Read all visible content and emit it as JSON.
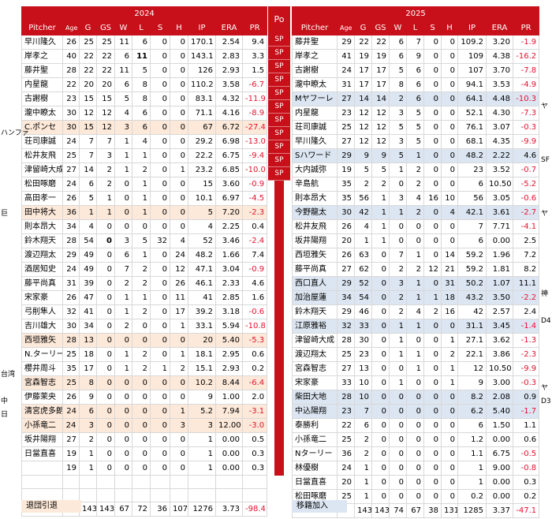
{
  "headers": {
    "year_left": "2024",
    "year_right": "2025",
    "position": "Po",
    "columns": [
      "Pitcher",
      "Age",
      "G",
      "GS",
      "W",
      "L",
      "S",
      "H",
      "IP",
      "ERA",
      "PR"
    ]
  },
  "left_rows": [
    {
      "name": "早川隆久",
      "age": "26",
      "g": "25",
      "gs": "25",
      "w": "11",
      "l": "6",
      "s": "0",
      "h": "0",
      "ip": "170.1",
      "era": "2.54",
      "pr": "9.4",
      "hl": "",
      "bold": ""
    },
    {
      "name": "岸孝之",
      "age": "40",
      "g": "22",
      "gs": "22",
      "w": "6",
      "l": "11",
      "s": "0",
      "h": "0",
      "ip": "143.1",
      "era": "2.83",
      "pr": "3.3",
      "hl": "",
      "bold": "l"
    },
    {
      "name": "藤井聖",
      "age": "28",
      "g": "22",
      "gs": "22",
      "w": "11",
      "l": "5",
      "s": "0",
      "h": "0",
      "ip": "126",
      "era": "2.93",
      "pr": "1.5",
      "hl": "",
      "bold": ""
    },
    {
      "name": "内星龍",
      "age": "22",
      "g": "20",
      "gs": "20",
      "w": "6",
      "l": "8",
      "s": "0",
      "h": "0",
      "ip": "110.2",
      "era": "3.58",
      "pr": "-6.7",
      "hl": "",
      "bold": ""
    },
    {
      "name": "古謝樹",
      "age": "23",
      "g": "15",
      "gs": "15",
      "w": "5",
      "l": "8",
      "s": "0",
      "h": "0",
      "ip": "83.1",
      "era": "4.32",
      "pr": "-11.9",
      "hl": "",
      "bold": ""
    },
    {
      "name": "瀧中瞭太",
      "age": "30",
      "g": "12",
      "gs": "12",
      "w": "4",
      "l": "6",
      "s": "0",
      "h": "0",
      "ip": "71.1",
      "era": "4.16",
      "pr": "-8.9",
      "hl": "",
      "bold": ""
    },
    {
      "name": "C.ポンセ",
      "age": "30",
      "g": "15",
      "gs": "12",
      "w": "3",
      "l": "6",
      "s": "0",
      "h": "0",
      "ip": "67",
      "era": "6.72",
      "pr": "-27.4",
      "hl": "orange",
      "bold": ""
    },
    {
      "name": "荘司康誠",
      "age": "24",
      "g": "7",
      "gs": "7",
      "w": "1",
      "l": "4",
      "s": "0",
      "h": "0",
      "ip": "29.2",
      "era": "6.98",
      "pr": "-13.0",
      "hl": "",
      "bold": ""
    },
    {
      "name": "松井友飛",
      "age": "25",
      "g": "7",
      "gs": "3",
      "w": "1",
      "l": "1",
      "s": "0",
      "h": "0",
      "ip": "22.2",
      "era": "6.75",
      "pr": "-9.4",
      "hl": "",
      "bold": ""
    },
    {
      "name": "津留崎大成",
      "age": "27",
      "g": "14",
      "gs": "2",
      "w": "1",
      "l": "2",
      "s": "0",
      "h": "1",
      "ip": "23.2",
      "era": "6.85",
      "pr": "-10.0",
      "hl": "",
      "bold": ""
    },
    {
      "name": "松田啄磨",
      "age": "24",
      "g": "6",
      "gs": "2",
      "w": "0",
      "l": "1",
      "s": "0",
      "h": "0",
      "ip": "15",
      "era": "3.60",
      "pr": "-0.9",
      "hl": "",
      "bold": ""
    },
    {
      "name": "高田孝一",
      "age": "26",
      "g": "5",
      "gs": "1",
      "w": "0",
      "l": "1",
      "s": "0",
      "h": "0",
      "ip": "10.1",
      "era": "6.97",
      "pr": "-4.5",
      "hl": "",
      "bold": ""
    },
    {
      "name": "田中将大",
      "age": "36",
      "g": "1",
      "gs": "1",
      "w": "0",
      "l": "1",
      "s": "0",
      "h": "0",
      "ip": "5",
      "era": "7.20",
      "pr": "-2.3",
      "hl": "orange",
      "bold": ""
    },
    {
      "name": "則本昂大",
      "age": "34",
      "g": "4",
      "gs": "0",
      "w": "0",
      "l": "0",
      "s": "0",
      "h": "0",
      "ip": "4",
      "era": "2.25",
      "pr": "0.4",
      "hl": "",
      "bold": ""
    },
    {
      "name": "鈴木翔天",
      "age": "28",
      "g": "54",
      "gs": "0",
      "w": "3",
      "l": "5",
      "s": "32",
      "h": "4",
      "ip": "52",
      "era": "3.46",
      "pr": "-2.4",
      "hl": "",
      "bold": "gs"
    },
    {
      "name": "渡辺翔太",
      "age": "29",
      "g": "49",
      "gs": "0",
      "w": "6",
      "l": "1",
      "s": "0",
      "h": "24",
      "ip": "48.2",
      "era": "1.66",
      "pr": "7.4",
      "hl": "",
      "bold": ""
    },
    {
      "name": "酒居知史",
      "age": "24",
      "g": "49",
      "gs": "0",
      "w": "7",
      "l": "2",
      "s": "0",
      "h": "12",
      "ip": "47.1",
      "era": "3.04",
      "pr": "-0.9",
      "hl": "",
      "bold": ""
    },
    {
      "name": "藤平尚真",
      "age": "31",
      "g": "39",
      "gs": "0",
      "w": "2",
      "l": "2",
      "s": "0",
      "h": "26",
      "ip": "46.1",
      "era": "2.33",
      "pr": "4.6",
      "hl": "",
      "bold": ""
    },
    {
      "name": "宋家豪",
      "age": "26",
      "g": "47",
      "gs": "0",
      "w": "1",
      "l": "1",
      "s": "0",
      "h": "11",
      "ip": "41",
      "era": "2.85",
      "pr": "1.6",
      "hl": "",
      "bold": ""
    },
    {
      "name": "弓削隼人",
      "age": "32",
      "g": "41",
      "gs": "0",
      "w": "1",
      "l": "2",
      "s": "0",
      "h": "17",
      "ip": "39.2",
      "era": "3.18",
      "pr": "-0.6",
      "hl": "",
      "bold": ""
    },
    {
      "name": "吉川雄大",
      "age": "30",
      "g": "34",
      "gs": "0",
      "w": "2",
      "l": "0",
      "s": "0",
      "h": "1",
      "ip": "33.1",
      "era": "5.94",
      "pr": "-10.8",
      "hl": "",
      "bold": ""
    },
    {
      "name": "西垣雅矢",
      "age": "28",
      "g": "13",
      "gs": "0",
      "w": "0",
      "l": "0",
      "s": "0",
      "h": "0",
      "ip": "20",
      "era": "5.40",
      "pr": "-5.3",
      "hl": "orange",
      "bold": ""
    },
    {
      "name": "N.ターリー",
      "age": "25",
      "g": "18",
      "gs": "0",
      "w": "1",
      "l": "2",
      "s": "0",
      "h": "1",
      "ip": "18.1",
      "era": "2.95",
      "pr": "0.6",
      "hl": "",
      "bold": ""
    },
    {
      "name": "櫻井周斗",
      "age": "35",
      "g": "17",
      "gs": "0",
      "w": "1",
      "l": "2",
      "s": "1",
      "h": "2",
      "ip": "15.1",
      "era": "2.93",
      "pr": "0.2",
      "hl": "",
      "bold": ""
    },
    {
      "name": "宮森智志",
      "age": "25",
      "g": "8",
      "gs": "0",
      "w": "0",
      "l": "0",
      "s": "0",
      "h": "0",
      "ip": "10.2",
      "era": "8.44",
      "pr": "-6.4",
      "hl": "orange",
      "bold": ""
    },
    {
      "name": "伊藤茉央",
      "age": "26",
      "g": "9",
      "gs": "0",
      "w": "0",
      "l": "0",
      "s": "0",
      "h": "0",
      "ip": "9",
      "era": "1.00",
      "pr": "2.0",
      "hl": "",
      "bold": ""
    },
    {
      "name": "清宮虎多朗",
      "age": "24",
      "g": "6",
      "gs": "0",
      "w": "0",
      "l": "0",
      "s": "0",
      "h": "1",
      "ip": "5.2",
      "era": "7.94",
      "pr": "-3.1",
      "hl": "orange",
      "bold": ""
    },
    {
      "name": "小孫竜二",
      "age": "24",
      "g": "3",
      "gs": "0",
      "w": "0",
      "l": "0",
      "s": "0",
      "h": "3",
      "ip": "12.00",
      "era": "",
      "pr": "-3.0",
      "hl": "orange",
      "bold": "",
      "ip_era_merged": "3"
    },
    {
      "name": "坂井陽翔",
      "age": "27",
      "g": "2",
      "gs": "0",
      "w": "0",
      "l": "0",
      "s": "0",
      "h": "0",
      "ip": "1",
      "era": "0.00",
      "pr": "0.5",
      "hl": "",
      "bold": ""
    },
    {
      "name": "日當直喜",
      "age": "19",
      "g": "1",
      "gs": "0",
      "w": "0",
      "l": "0",
      "s": "0",
      "h": "0",
      "ip": "1",
      "era": "0.00",
      "pr": "0.3",
      "hl": "",
      "bold": ""
    },
    {
      "name": "",
      "age": "19",
      "g": "1",
      "gs": "0",
      "w": "0",
      "l": "0",
      "s": "0",
      "h": "0",
      "ip": "1",
      "era": "0.00",
      "pr": "0.3",
      "hl": "",
      "bold": ""
    },
    {
      "name": "",
      "age": "",
      "g": "",
      "gs": "",
      "w": "",
      "l": "",
      "s": "",
      "h": "",
      "ip": "",
      "era": "",
      "pr": "",
      "hl": "",
      "bold": ""
    },
    {
      "name": "",
      "age": "",
      "g": "",
      "gs": "",
      "w": "",
      "l": "",
      "s": "",
      "h": "",
      "ip": "",
      "era": "",
      "pr": "",
      "hl": "",
      "bold": ""
    },
    {
      "name": "",
      "age": "",
      "g": "",
      "gs": "",
      "w": "",
      "l": "",
      "s": "",
      "h": "",
      "ip": "",
      "era": "",
      "pr": "",
      "hl": "",
      "bold": ""
    }
  ],
  "left_total": {
    "g": "143",
    "gs": "143",
    "w": "67",
    "l": "72",
    "s": "36",
    "h": "107",
    "ip": "1276",
    "era": "3.73",
    "pr": "-98.4"
  },
  "right_rows": [
    {
      "name": "藤井聖",
      "age": "29",
      "g": "22",
      "gs": "22",
      "w": "6",
      "l": "7",
      "s": "0",
      "h": "0",
      "ip": "109.2",
      "era": "3.20",
      "pr": "-1.9",
      "hl": ""
    },
    {
      "name": "岸孝之",
      "age": "41",
      "g": "19",
      "gs": "19",
      "w": "6",
      "l": "9",
      "s": "0",
      "h": "0",
      "ip": "109",
      "era": "4.38",
      "pr": "-16.2",
      "hl": ""
    },
    {
      "name": "古謝樹",
      "age": "24",
      "g": "17",
      "gs": "17",
      "w": "5",
      "l": "6",
      "s": "0",
      "h": "0",
      "ip": "107",
      "era": "3.70",
      "pr": "-7.8",
      "hl": ""
    },
    {
      "name": "瀧中瞭太",
      "age": "31",
      "g": "17",
      "gs": "17",
      "w": "8",
      "l": "6",
      "s": "0",
      "h": "0",
      "ip": "94.1",
      "era": "3.53",
      "pr": "-4.9",
      "hl": ""
    },
    {
      "name": "Mヤフーレ",
      "age": "27",
      "g": "14",
      "gs": "14",
      "w": "2",
      "l": "6",
      "s": "0",
      "h": "0",
      "ip": "64.1",
      "era": "4.48",
      "pr": "-10.3",
      "hl": "blue"
    },
    {
      "name": "内星龍",
      "age": "23",
      "g": "12",
      "gs": "12",
      "w": "3",
      "l": "5",
      "s": "0",
      "h": "0",
      "ip": "52.1",
      "era": "4.30",
      "pr": "-7.3",
      "hl": ""
    },
    {
      "name": "荘司康誠",
      "age": "25",
      "g": "12",
      "gs": "12",
      "w": "5",
      "l": "5",
      "s": "0",
      "h": "0",
      "ip": "76.1",
      "era": "3.07",
      "pr": "-0.3",
      "hl": ""
    },
    {
      "name": "早川隆久",
      "age": "27",
      "g": "12",
      "gs": "12",
      "w": "3",
      "l": "5",
      "s": "0",
      "h": "0",
      "ip": "68.1",
      "era": "4.35",
      "pr": "-9.9",
      "hl": ""
    },
    {
      "name": "Sハワード",
      "age": "29",
      "g": "9",
      "gs": "9",
      "w": "5",
      "l": "1",
      "s": "0",
      "h": "0",
      "ip": "48.2",
      "era": "2.22",
      "pr": "4.6",
      "hl": "blue"
    },
    {
      "name": "大内誠弥",
      "age": "19",
      "g": "5",
      "gs": "5",
      "w": "1",
      "l": "2",
      "s": "0",
      "h": "0",
      "ip": "23",
      "era": "3.52",
      "pr": "-0.7",
      "hl": ""
    },
    {
      "name": "辛島航",
      "age": "35",
      "g": "2",
      "gs": "2",
      "w": "0",
      "l": "2",
      "s": "0",
      "h": "0",
      "ip": "6",
      "era": "10.50",
      "pr": "-5.2",
      "hl": ""
    },
    {
      "name": "則本昂大",
      "age": "35",
      "g": "56",
      "gs": "1",
      "w": "3",
      "l": "4",
      "s": "16",
      "h": "10",
      "ip": "56",
      "era": "3.05",
      "pr": "-0.6",
      "hl": ""
    },
    {
      "name": "今野龍太",
      "age": "30",
      "g": "42",
      "gs": "1",
      "w": "1",
      "l": "2",
      "s": "0",
      "h": "4",
      "ip": "42.1",
      "era": "3.61",
      "pr": "-2.7",
      "hl": "blue"
    },
    {
      "name": "松井友飛",
      "age": "26",
      "g": "4",
      "gs": "1",
      "w": "0",
      "l": "0",
      "s": "0",
      "h": "0",
      "ip": "7",
      "era": "7.71",
      "pr": "-4.1",
      "hl": ""
    },
    {
      "name": "坂井陽翔",
      "age": "20",
      "g": "1",
      "gs": "1",
      "w": "0",
      "l": "0",
      "s": "0",
      "h": "0",
      "ip": "6",
      "era": "0.00",
      "pr": "2.5",
      "hl": ""
    },
    {
      "name": "西垣雅矢",
      "age": "26",
      "g": "63",
      "gs": "0",
      "w": "7",
      "l": "1",
      "s": "0",
      "h": "14",
      "ip": "59.2",
      "era": "1.96",
      "pr": "7.2",
      "hl": ""
    },
    {
      "name": "藤平尚真",
      "age": "27",
      "g": "62",
      "gs": "0",
      "w": "2",
      "l": "2",
      "s": "12",
      "h": "21",
      "ip": "59.2",
      "era": "1.81",
      "pr": "8.2",
      "hl": ""
    },
    {
      "name": "西口直人",
      "age": "29",
      "g": "52",
      "gs": "0",
      "w": "3",
      "l": "1",
      "s": "0",
      "h": "31",
      "ip": "50.2",
      "era": "1.07",
      "pr": "11.1",
      "hl": "blue"
    },
    {
      "name": "加治屋蓮",
      "age": "34",
      "g": "54",
      "gs": "0",
      "w": "2",
      "l": "1",
      "s": "1",
      "h": "18",
      "ip": "43.2",
      "era": "3.50",
      "pr": "-2.2",
      "hl": "blue"
    },
    {
      "name": "鈴木翔天",
      "age": "29",
      "g": "46",
      "gs": "0",
      "w": "2",
      "l": "4",
      "s": "2",
      "h": "16",
      "ip": "42",
      "era": "2.57",
      "pr": "2.4",
      "hl": ""
    },
    {
      "name": "江原雅裕",
      "age": "32",
      "g": "33",
      "gs": "0",
      "w": "1",
      "l": "1",
      "s": "0",
      "h": "0",
      "ip": "31.1",
      "era": "3.45",
      "pr": "-1.4",
      "hl": "blue"
    },
    {
      "name": "津留崎大成",
      "age": "28",
      "g": "30",
      "gs": "0",
      "w": "1",
      "l": "0",
      "s": "0",
      "h": "1",
      "ip": "27.1",
      "era": "3.62",
      "pr": "-1.3",
      "hl": ""
    },
    {
      "name": "渡辺翔太",
      "age": "25",
      "g": "23",
      "gs": "0",
      "w": "1",
      "l": "1",
      "s": "0",
      "h": "2",
      "ip": "22.1",
      "era": "3.86",
      "pr": "-2.3",
      "hl": ""
    },
    {
      "name": "宮森智志",
      "age": "27",
      "g": "13",
      "gs": "0",
      "w": "0",
      "l": "1",
      "s": "0",
      "h": "1",
      "ip": "12",
      "era": "10.50",
      "pr": "-9.9",
      "hl": ""
    },
    {
      "name": "宋家豪",
      "age": "33",
      "g": "10",
      "gs": "0",
      "w": "1",
      "l": "0",
      "s": "0",
      "h": "1",
      "ip": "9",
      "era": "3.00",
      "pr": "-0.3",
      "hl": ""
    },
    {
      "name": "柴田大地",
      "age": "28",
      "g": "10",
      "gs": "0",
      "w": "0",
      "l": "0",
      "s": "0",
      "h": "0",
      "ip": "8.2",
      "era": "2.08",
      "pr": "0.9",
      "hl": "blue"
    },
    {
      "name": "中込陽翔",
      "age": "23",
      "g": "7",
      "gs": "0",
      "w": "0",
      "l": "0",
      "s": "0",
      "h": "0",
      "ip": "6.2",
      "era": "5.40",
      "pr": "-1.7",
      "hl": "blue"
    },
    {
      "name": "泰勝利",
      "age": "22",
      "g": "6",
      "gs": "0",
      "w": "0",
      "l": "0",
      "s": "0",
      "h": "0",
      "ip": "6",
      "era": "1.50",
      "pr": "1.1",
      "hl": ""
    },
    {
      "name": "小孫竜二",
      "age": "25",
      "g": "2",
      "gs": "0",
      "w": "0",
      "l": "0",
      "s": "0",
      "h": "0",
      "ip": "1.2",
      "era": "0.00",
      "pr": "0.6",
      "hl": ""
    },
    {
      "name": "Nターリー",
      "age": "36",
      "g": "2",
      "gs": "0",
      "w": "0",
      "l": "0",
      "s": "0",
      "h": "0",
      "ip": "1.1",
      "era": "6.75",
      "pr": "-0.5",
      "hl": ""
    },
    {
      "name": "林優樹",
      "age": "24",
      "g": "1",
      "gs": "0",
      "w": "0",
      "l": "0",
      "s": "0",
      "h": "0",
      "ip": "1",
      "era": "9.00",
      "pr": "-0.8",
      "hl": ""
    },
    {
      "name": "日當直喜",
      "age": "20",
      "g": "1",
      "gs": "0",
      "w": "0",
      "l": "0",
      "s": "0",
      "h": "0",
      "ip": "1",
      "era": "0.00",
      "pr": "0.3",
      "hl": ""
    },
    {
      "name": "松田啄磨",
      "age": "25",
      "g": "1",
      "gs": "0",
      "w": "0",
      "l": "0",
      "s": "0",
      "h": "0",
      "ip": "0.2",
      "era": "0.00",
      "pr": "0.2",
      "hl": ""
    }
  ],
  "right_total": {
    "g": "143",
    "gs": "143",
    "w": "74",
    "l": "67",
    "s": "38",
    "h": "131",
    "ip": "1285",
    "era": "3.37",
    "pr": "-47.1"
  },
  "positions": [
    "SP",
    "SP",
    "SP",
    "SP",
    "SP",
    "SP",
    "SP",
    "SP",
    "SP",
    "SP",
    "SP"
  ],
  "left_side_notes": [
    {
      "row": 7,
      "text": "ハンファ"
    },
    {
      "row": 13,
      "text": "巨"
    },
    {
      "row": 25,
      "text": "台湾"
    },
    {
      "row": 27,
      "text": "中"
    },
    {
      "row": 28,
      "text": "日"
    }
  ],
  "right_side_notes": [
    {
      "row": 5,
      "text": "ヤ"
    },
    {
      "row": 9,
      "text": "SF"
    },
    {
      "row": 13,
      "text": "ヤ"
    },
    {
      "row": 19,
      "text": "神"
    },
    {
      "row": 21,
      "text": "D4"
    },
    {
      "row": 26,
      "text": "ヤ"
    },
    {
      "row": 27,
      "text": "D3"
    }
  ],
  "legend": {
    "left": "退団引退",
    "right": "移籍加入"
  },
  "colors": {
    "header_red": "#c8101a",
    "negative_red": "#e8112d",
    "left_highlight": "#fde9d9",
    "right_highlight": "#dce6f2"
  }
}
